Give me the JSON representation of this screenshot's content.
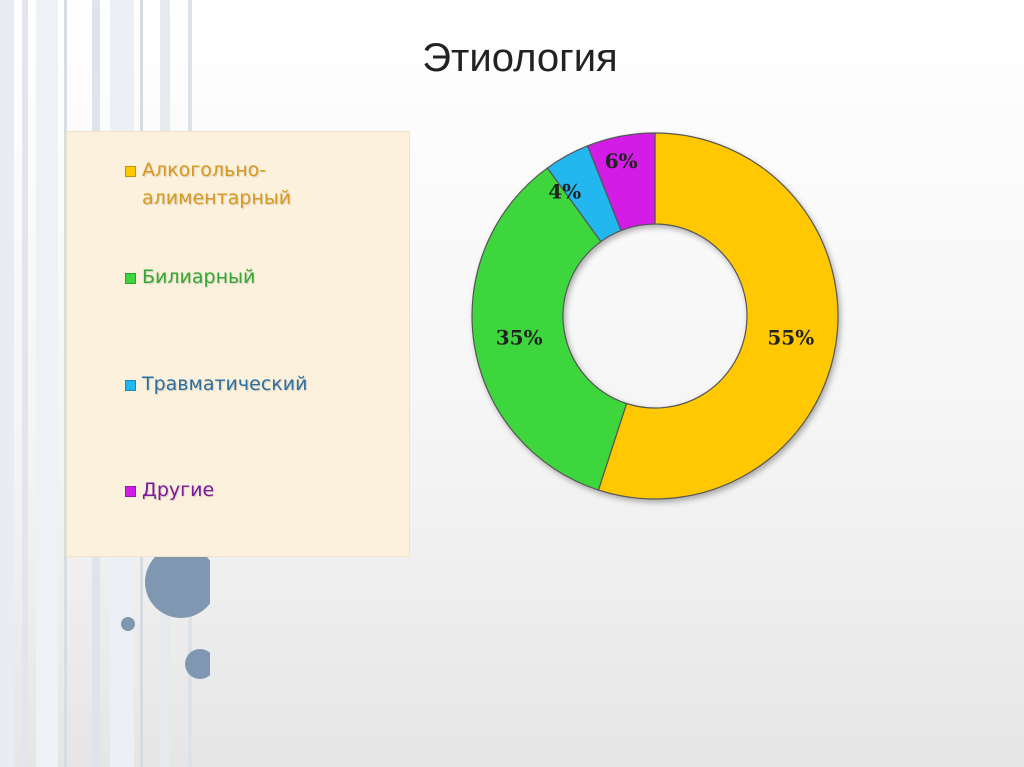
{
  "slide": {
    "title": "Этиология"
  },
  "chart_data": {
    "type": "pie",
    "variant": "doughnut",
    "categories": [
      "Алкогольно-алиментарный",
      "Билиарный",
      "Травматический",
      "Другие"
    ],
    "values": [
      55,
      35,
      4,
      6
    ],
    "value_labels": [
      "55%",
      "35%",
      "4%",
      "6%"
    ],
    "colors": [
      "#ffc800",
      "#3dd63d",
      "#22b7ee",
      "#d31ce6"
    ],
    "legend_position": "left",
    "legend_colors": {
      "Алкогольно-алиментарный": "#d89a1e",
      "Билиарный": "#32a832",
      "Травматический": "#2c6f9e",
      "Другие": "#7a1a9c"
    }
  },
  "legend": {
    "items": [
      {
        "line1": "Алкогольно-",
        "line2": "алиментарный",
        "color": "#ffc800",
        "text_color": "#d89a1e"
      },
      {
        "line1": "Билиарный",
        "line2": "",
        "color": "#3dd63d",
        "text_color": "#32a832"
      },
      {
        "line1": "Травматический",
        "line2": "",
        "color": "#22b7ee",
        "text_color": "#2c6f9e"
      },
      {
        "line1": "Другие",
        "line2": "",
        "color": "#d31ce6",
        "text_color": "#7a1a9c"
      }
    ]
  }
}
